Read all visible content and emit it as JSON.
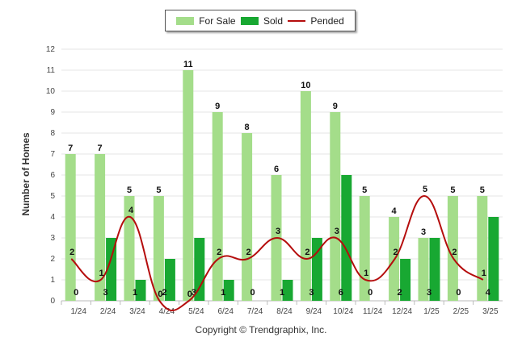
{
  "chart_data": {
    "type": "bar",
    "categories": [
      "1/24",
      "2/24",
      "3/24",
      "4/24",
      "5/24",
      "6/24",
      "7/24",
      "8/24",
      "9/24",
      "10/24",
      "11/24",
      "12/24",
      "1/25",
      "2/25",
      "3/25"
    ],
    "series": [
      {
        "name": "For Sale",
        "kind": "bar",
        "color": "#a4dd8a",
        "values": [
          7,
          7,
          5,
          5,
          11,
          9,
          8,
          6,
          10,
          9,
          5,
          4,
          3,
          5,
          5
        ]
      },
      {
        "name": "Sold",
        "kind": "bar",
        "color": "#18a832",
        "values": [
          0,
          3,
          1,
          2,
          3,
          1,
          0,
          1,
          3,
          6,
          0,
          2,
          3,
          0,
          4
        ]
      },
      {
        "name": "Pended",
        "kind": "line",
        "color": "#b50d0d",
        "values": [
          2,
          1,
          4,
          0,
          0,
          2,
          2,
          3,
          2,
          3,
          1,
          2,
          5,
          2,
          1
        ]
      }
    ],
    "ylabel": "Number of Homes",
    "ylim": [
      0,
      12
    ],
    "yticks": [
      0,
      1,
      2,
      3,
      4,
      5,
      6,
      7,
      8,
      9,
      10,
      11,
      12
    ],
    "grid": true,
    "legend": "top-center"
  },
  "copyright": "Copyright © Trendgraphix, Inc."
}
